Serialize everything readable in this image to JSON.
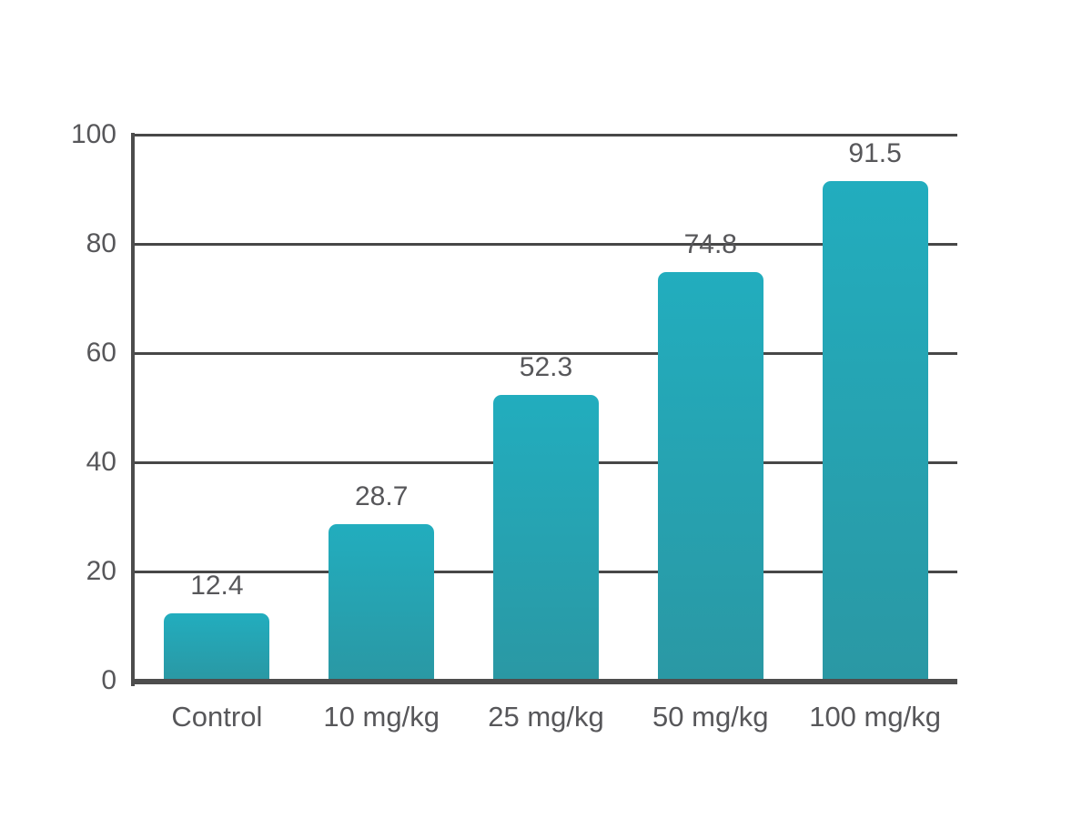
{
  "chart_data": {
    "type": "bar",
    "title": "",
    "xlabel": "",
    "ylabel": "",
    "categories": [
      "Control",
      "10 mg/kg",
      "25 mg/kg",
      "50 mg/kg",
      "100 mg/kg"
    ],
    "values": [
      12.4,
      28.7,
      52.3,
      74.8,
      91.5
    ],
    "value_labels": [
      "12.4",
      "28.7",
      "52.3",
      "74.8",
      "91.5"
    ],
    "ylim": [
      0,
      100
    ],
    "yticks": [
      0,
      20,
      40,
      60,
      80,
      100
    ],
    "grid": "horizontal gridlines at each y tick, drawn behind bars",
    "legend_position": "none",
    "colors": {
      "bar_gradient_top": "#22adbe",
      "bar_gradient_bottom": "#2a98a4",
      "axis": "#4d4d4d",
      "grid": "#474747",
      "text": "#57575a",
      "background": "#ffffff"
    }
  }
}
